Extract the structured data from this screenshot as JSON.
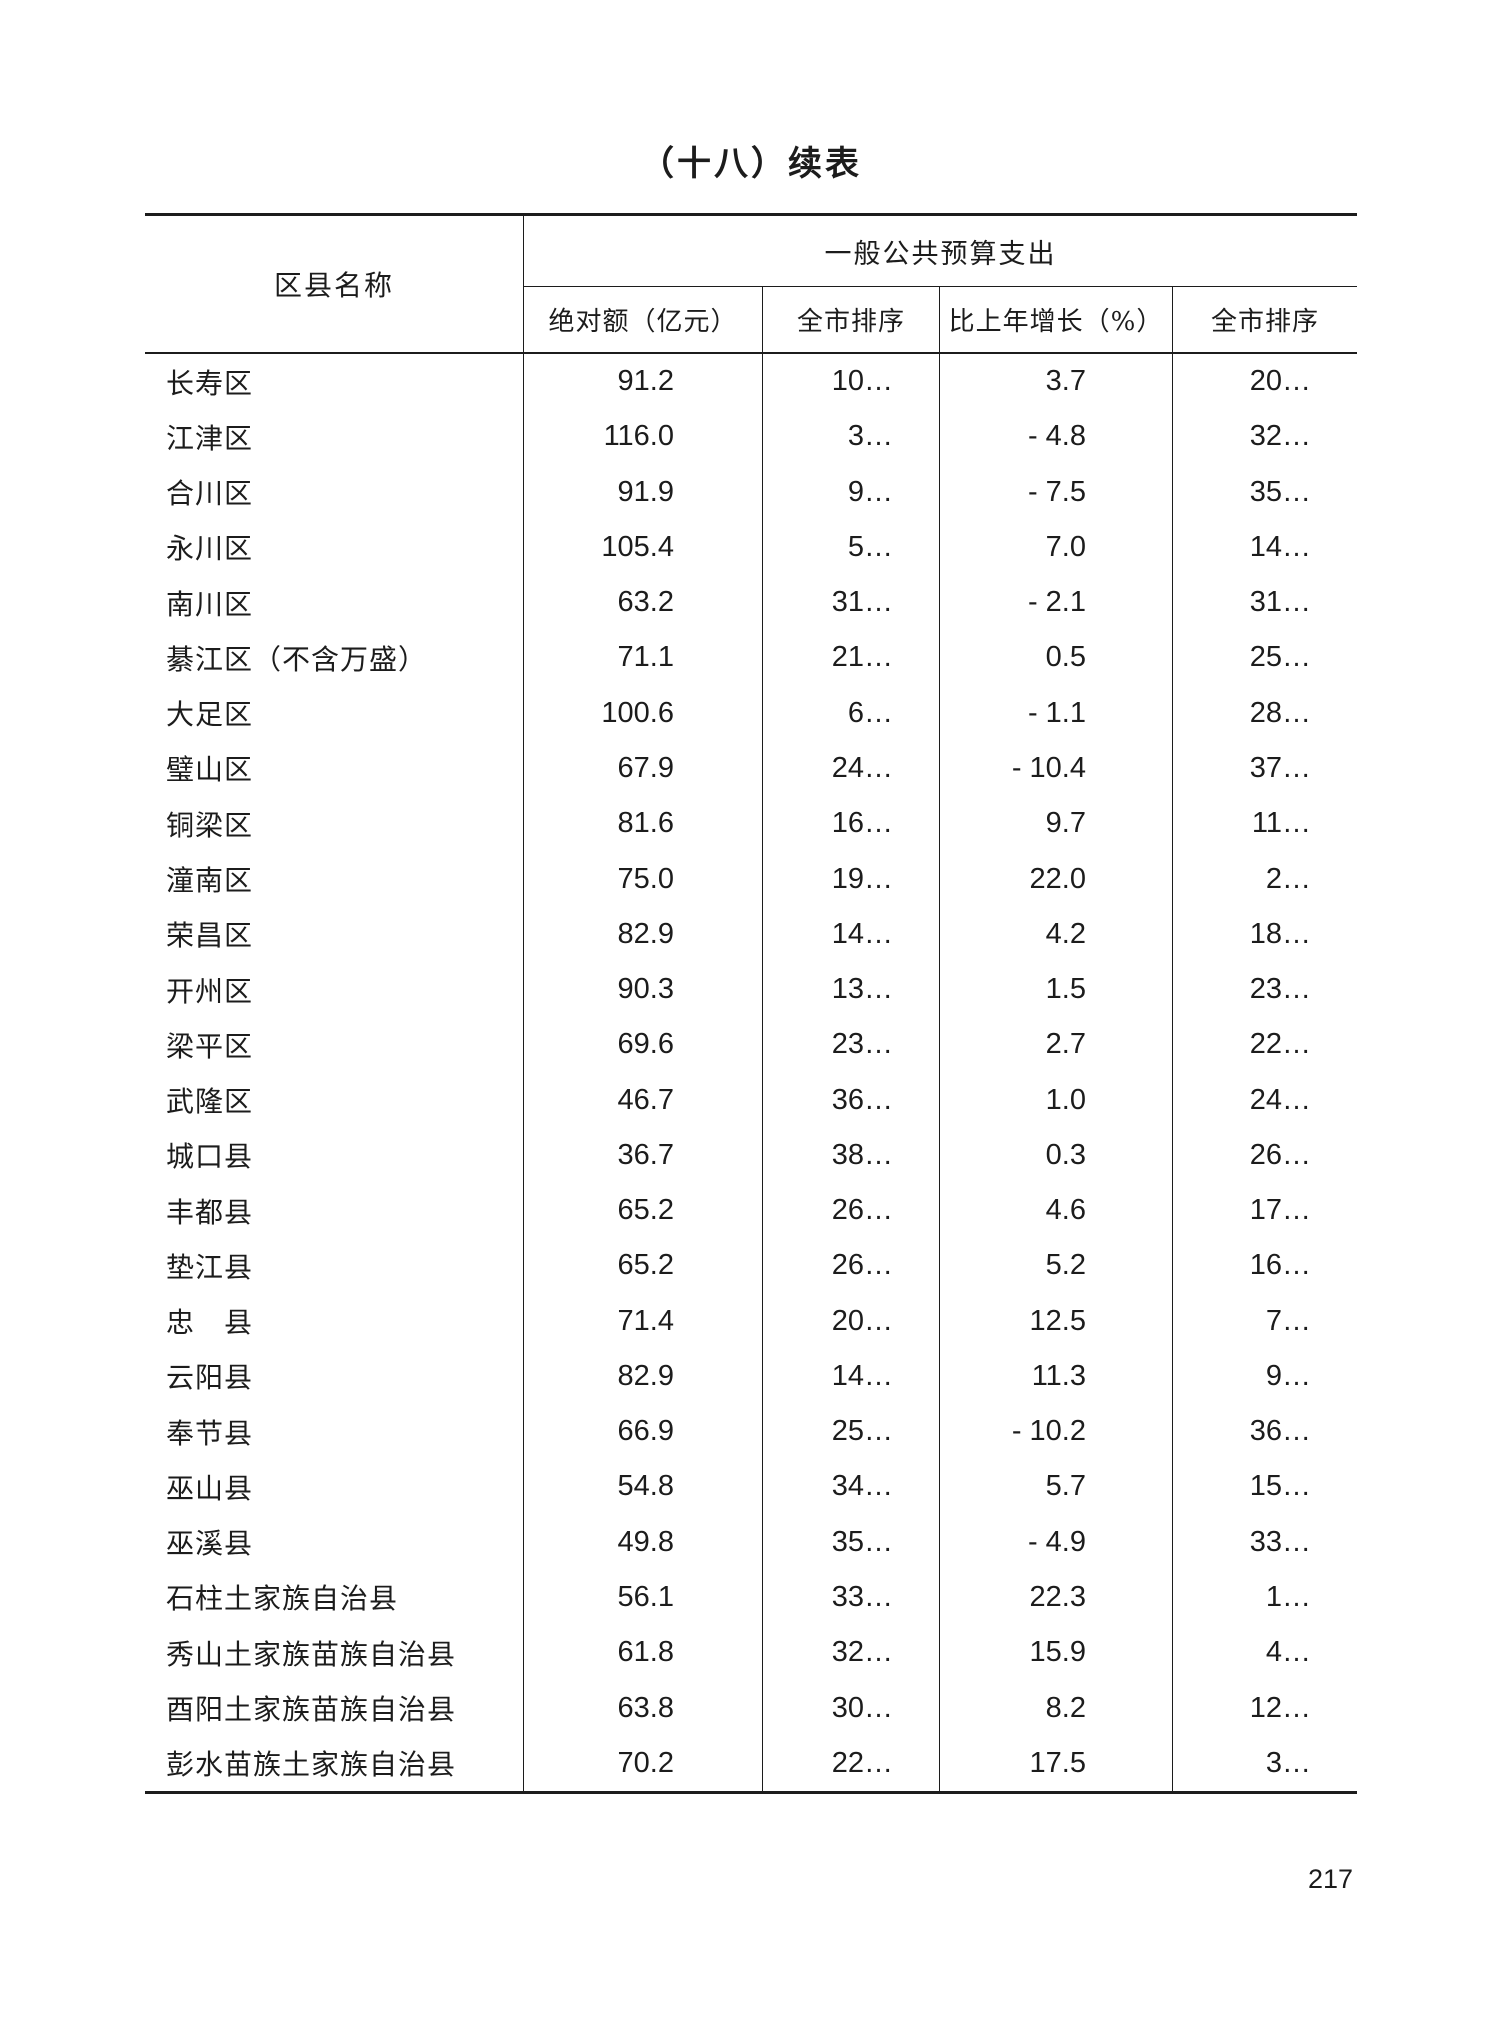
{
  "page": {
    "title": "（十八）续表",
    "page_number": "217"
  },
  "table": {
    "name_column_header": "区县名称",
    "group_header": "一般公共预算支出",
    "sub_headers": [
      "绝对额（亿元）",
      "全市排序",
      "比上年增长（%）",
      "全市排序"
    ],
    "rows": [
      [
        "长寿区",
        "91.2",
        "10…",
        "3.7",
        "20…"
      ],
      [
        "江津区",
        "116.0",
        "3…",
        "- 4.8",
        "32…"
      ],
      [
        "合川区",
        "91.9",
        "9…",
        "- 7.5",
        "35…"
      ],
      [
        "永川区",
        "105.4",
        "5…",
        "7.0",
        "14…"
      ],
      [
        "南川区",
        "63.2",
        "31…",
        "- 2.1",
        "31…"
      ],
      [
        "綦江区（不含万盛）",
        "71.1",
        "21…",
        "0.5",
        "25…"
      ],
      [
        "大足区",
        "100.6",
        "6…",
        "- 1.1",
        "28…"
      ],
      [
        "璧山区",
        "67.9",
        "24…",
        "- 10.4",
        "37…"
      ],
      [
        "铜梁区",
        "81.6",
        "16…",
        "9.7",
        "11…"
      ],
      [
        "潼南区",
        "75.0",
        "19…",
        "22.0",
        "2…"
      ],
      [
        "荣昌区",
        "82.9",
        "14…",
        "4.2",
        "18…"
      ],
      [
        "开州区",
        "90.3",
        "13…",
        "1.5",
        "23…"
      ],
      [
        "梁平区",
        "69.6",
        "23…",
        "2.7",
        "22…"
      ],
      [
        "武隆区",
        "46.7",
        "36…",
        "1.0",
        "24…"
      ],
      [
        "城口县",
        "36.7",
        "38…",
        "0.3",
        "26…"
      ],
      [
        "丰都县",
        "65.2",
        "26…",
        "4.6",
        "17…"
      ],
      [
        "垫江县",
        "65.2",
        "26…",
        "5.2",
        "16…"
      ],
      [
        "忠　县",
        "71.4",
        "20…",
        "12.5",
        "7…"
      ],
      [
        "云阳县",
        "82.9",
        "14…",
        "11.3",
        "9…"
      ],
      [
        "奉节县",
        "66.9",
        "25…",
        "- 10.2",
        "36…"
      ],
      [
        "巫山县",
        "54.8",
        "34…",
        "5.7",
        "15…"
      ],
      [
        "巫溪县",
        "49.8",
        "35…",
        "- 4.9",
        "33…"
      ],
      [
        "石柱土家族自治县",
        "56.1",
        "33…",
        "22.3",
        "1…"
      ],
      [
        "秀山土家族苗族自治县",
        "61.8",
        "32…",
        "15.9",
        "4…"
      ],
      [
        "酉阳土家族苗族自治县",
        "63.8",
        "30…",
        "8.2",
        "12…"
      ],
      [
        "彭水苗族土家族自治县",
        "70.2",
        "22…",
        "17.5",
        "3…"
      ]
    ]
  }
}
